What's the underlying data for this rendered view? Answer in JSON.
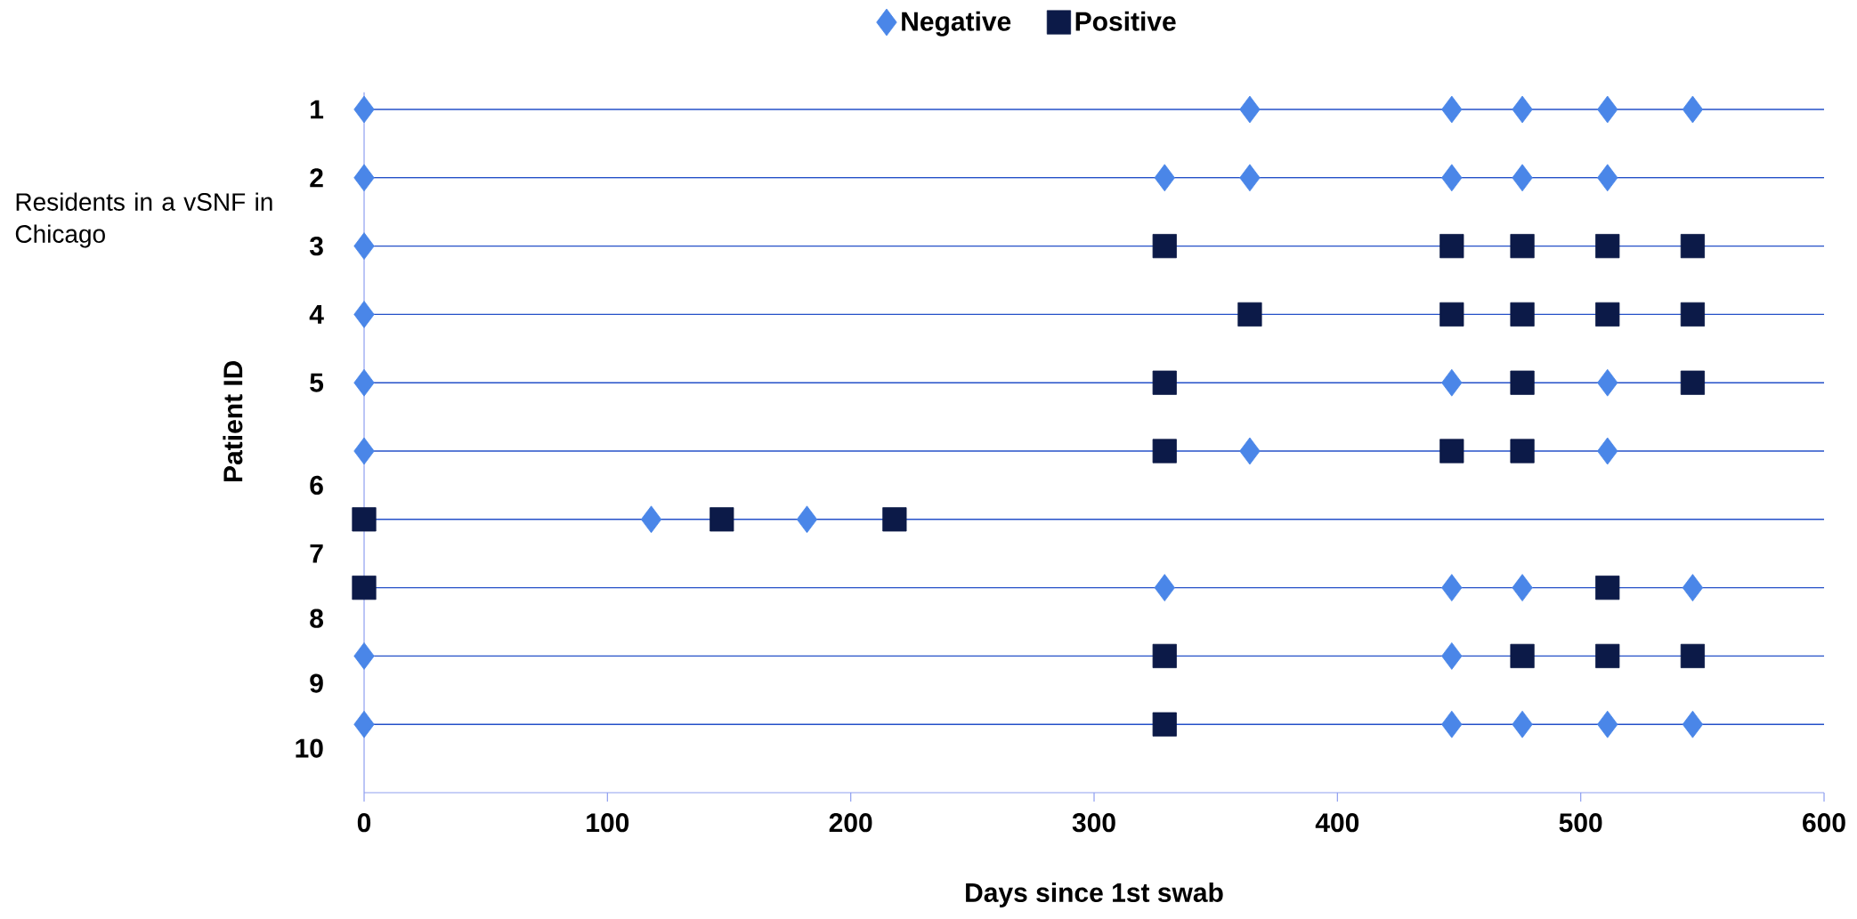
{
  "chart_data": {
    "type": "scatter",
    "xlabel": "Days since 1st swab",
    "ylabel": "Patient ID",
    "annotations": [
      "Residents in a vSNF in Chicago"
    ],
    "xlim": [
      0,
      600
    ],
    "xticks": [
      0,
      100,
      200,
      300,
      400,
      500,
      600
    ],
    "ylim": [
      11,
      0.75
    ],
    "yticks": [
      {
        "value": 1,
        "label": "1"
      },
      {
        "value": 2,
        "label": "2"
      },
      {
        "value": 3,
        "label": "3"
      },
      {
        "value": 4,
        "label": "4"
      },
      {
        "value": 5,
        "label": "5"
      },
      {
        "value": 6.5,
        "label": "6"
      },
      {
        "value": 7.5,
        "label": "7"
      },
      {
        "value": 8.45,
        "label": "8"
      },
      {
        "value": 9.4,
        "label": "9"
      },
      {
        "value": 10.35,
        "label": "10"
      }
    ],
    "ref_lines": [
      {
        "axis": "y",
        "value": 1,
        "color": "#2450c8"
      },
      {
        "axis": "y",
        "value": 2,
        "color": "#2450c8"
      },
      {
        "axis": "y",
        "value": 3,
        "color": "#2450c8"
      },
      {
        "axis": "y",
        "value": 4,
        "color": "#2450c8"
      },
      {
        "axis": "y",
        "value": 5,
        "color": "#2450c8"
      },
      {
        "axis": "y",
        "value": 6,
        "color": "#2450c8"
      },
      {
        "axis": "y",
        "value": 7,
        "color": "#2450c8"
      },
      {
        "axis": "y",
        "value": 8,
        "color": "#2450c8"
      },
      {
        "axis": "y",
        "value": 9,
        "color": "#2450c8"
      },
      {
        "axis": "y",
        "value": 10,
        "color": "#2450c8"
      }
    ],
    "legend": "top",
    "series": [
      {
        "name": "Negative",
        "color": "#4a86e8",
        "marker": "diamond",
        "x": [
          0,
          364,
          447,
          476,
          511,
          546,
          0,
          329,
          364,
          447,
          476,
          511,
          0,
          0,
          0,
          447,
          511,
          0,
          364,
          511,
          118,
          182,
          329,
          447,
          476,
          546,
          0,
          447,
          0,
          447,
          476,
          511,
          546
        ],
        "values": [
          1,
          1,
          1,
          1,
          1,
          1,
          2,
          2,
          2,
          2,
          2,
          2,
          3,
          4,
          5,
          5,
          5,
          6,
          6,
          6,
          7,
          7,
          8,
          8,
          8,
          8,
          9,
          9,
          10,
          10,
          10,
          10,
          10
        ]
      },
      {
        "name": "Positive",
        "color": "#0c1a48",
        "marker": "square",
        "x": [
          329,
          447,
          476,
          511,
          546,
          364,
          447,
          476,
          511,
          546,
          329,
          476,
          546,
          329,
          447,
          476,
          0,
          147,
          218,
          0,
          511,
          329,
          476,
          511,
          546,
          329
        ],
        "values": [
          3,
          3,
          3,
          3,
          3,
          4,
          4,
          4,
          4,
          4,
          5,
          5,
          5,
          6,
          6,
          6,
          7,
          7,
          7,
          8,
          8,
          9,
          9,
          9,
          9,
          10
        ]
      }
    ]
  }
}
